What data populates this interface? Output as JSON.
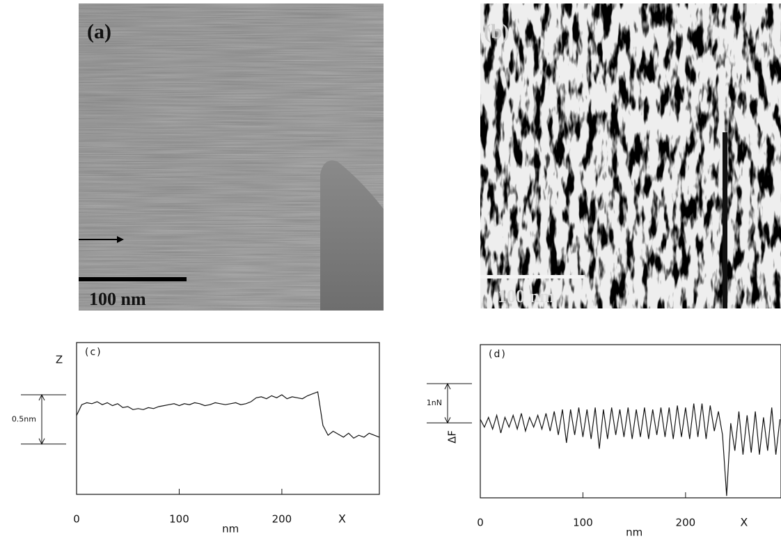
{
  "images": [
    {
      "label": "(a)",
      "scale_bar": "100 nm"
    },
    {
      "label": "(b)",
      "scale_bar": "100 nm"
    }
  ],
  "chart_data": [
    {
      "type": "line",
      "panel": "(c)",
      "y_label": "Z",
      "x_label": "nm",
      "x_end_label": "X",
      "scale_bar": {
        "value": 0.5,
        "label": "0.5nm"
      },
      "xlim": [
        0,
        295
      ],
      "ylim": [
        0,
        1.54
      ],
      "xticks": [
        0,
        100,
        200
      ],
      "color": "#111",
      "x": [
        0,
        5,
        10,
        15,
        20,
        25,
        30,
        35,
        40,
        45,
        50,
        55,
        60,
        65,
        70,
        75,
        80,
        85,
        90,
        95,
        100,
        105,
        110,
        115,
        120,
        125,
        130,
        135,
        140,
        145,
        150,
        155,
        160,
        165,
        170,
        175,
        180,
        185,
        190,
        195,
        200,
        205,
        210,
        215,
        220,
        225,
        230,
        235,
        240,
        245,
        250,
        255,
        260,
        265,
        270,
        275,
        280,
        285,
        290,
        295
      ],
      "values": [
        0.8,
        0.91,
        0.93,
        0.92,
        0.94,
        0.91,
        0.93,
        0.9,
        0.92,
        0.88,
        0.89,
        0.86,
        0.87,
        0.86,
        0.88,
        0.87,
        0.89,
        0.9,
        0.91,
        0.92,
        0.9,
        0.92,
        0.91,
        0.93,
        0.92,
        0.9,
        0.91,
        0.93,
        0.92,
        0.91,
        0.92,
        0.93,
        0.91,
        0.92,
        0.94,
        0.98,
        0.99,
        0.97,
        1.0,
        0.98,
        1.01,
        0.97,
        0.99,
        0.98,
        0.97,
        1.0,
        1.02,
        1.04,
        0.7,
        0.6,
        0.64,
        0.61,
        0.58,
        0.62,
        0.57,
        0.6,
        0.58,
        0.62,
        0.6,
        0.58
      ]
    },
    {
      "type": "line",
      "panel": "(d)",
      "y_label": "ΔF",
      "x_label": "nm",
      "x_end_label": "X",
      "scale_bar": {
        "value": 1,
        "label": "1nN"
      },
      "xlim": [
        0,
        293
      ],
      "ylim": [
        0,
        3.9
      ],
      "xticks": [
        0,
        100,
        200
      ],
      "color": "#111",
      "x": [
        0,
        4,
        8,
        12,
        16,
        20,
        24,
        28,
        32,
        36,
        40,
        44,
        48,
        52,
        56,
        60,
        64,
        68,
        72,
        76,
        80,
        84,
        88,
        92,
        96,
        100,
        104,
        108,
        112,
        116,
        120,
        124,
        128,
        132,
        136,
        140,
        144,
        148,
        152,
        156,
        160,
        164,
        168,
        172,
        176,
        180,
        184,
        188,
        192,
        196,
        200,
        204,
        208,
        212,
        216,
        220,
        224,
        228,
        232,
        236,
        240,
        244,
        248,
        252,
        256,
        260,
        264,
        268,
        272,
        276,
        280,
        284,
        288,
        292
      ],
      "values": [
        2.0,
        1.8,
        2.05,
        1.75,
        2.1,
        1.65,
        2.05,
        1.8,
        2.1,
        1.75,
        2.15,
        1.7,
        2.05,
        1.8,
        2.1,
        1.75,
        2.15,
        1.7,
        2.2,
        1.6,
        2.25,
        1.4,
        2.25,
        1.6,
        2.3,
        1.55,
        2.25,
        1.5,
        2.3,
        1.25,
        2.25,
        1.5,
        2.3,
        1.6,
        2.25,
        1.55,
        2.3,
        1.5,
        2.25,
        1.55,
        2.3,
        1.5,
        2.25,
        1.6,
        2.3,
        1.55,
        2.3,
        1.5,
        2.35,
        1.55,
        2.3,
        1.5,
        2.4,
        1.55,
        2.4,
        1.5,
        2.35,
        1.7,
        2.2,
        1.6,
        0.05,
        1.9,
        1.2,
        2.2,
        1.1,
        2.1,
        1.15,
        2.2,
        1.1,
        2.05,
        1.2,
        2.3,
        1.1,
        2.0
      ]
    }
  ]
}
